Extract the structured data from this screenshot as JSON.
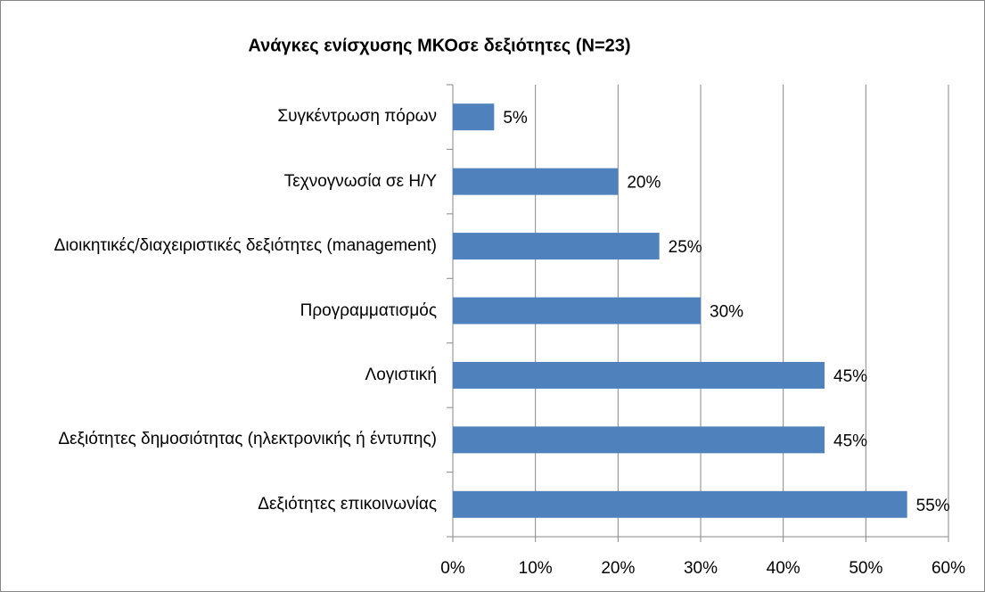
{
  "chart_data": {
    "type": "bar",
    "orientation": "horizontal",
    "title": "Ανάγκες ενίσχυσης ΜΚΟσε δεξιότητες (Ν=23)",
    "categories": [
      "Συγκέντρωση πόρων",
      "Τεχνογνωσία σε Η/Υ",
      "Διοικητικές/διαχειριστικές δεξιότητες (management)",
      "Προγραμματισμός",
      "Λογιστική",
      "Δεξιότητες δημοσιότητας (ηλεκτρονικής ή έντυπης)",
      "Δεξιότητες επικοινωνίας"
    ],
    "values": [
      5,
      20,
      25,
      30,
      45,
      45,
      55
    ],
    "value_labels": [
      "5%",
      "20%",
      "25%",
      "30%",
      "45%",
      "45%",
      "55%"
    ],
    "color": "#4f81bd",
    "xlim": [
      0,
      60
    ],
    "xticks": [
      {
        "value": 0,
        "label": "0%"
      },
      {
        "value": 10,
        "label": "10%"
      },
      {
        "value": 20,
        "label": "20%"
      },
      {
        "value": 30,
        "label": "30%"
      },
      {
        "value": 40,
        "label": "40%"
      },
      {
        "value": 50,
        "label": "50%"
      },
      {
        "value": 60,
        "label": "60%"
      }
    ],
    "grid": true
  }
}
